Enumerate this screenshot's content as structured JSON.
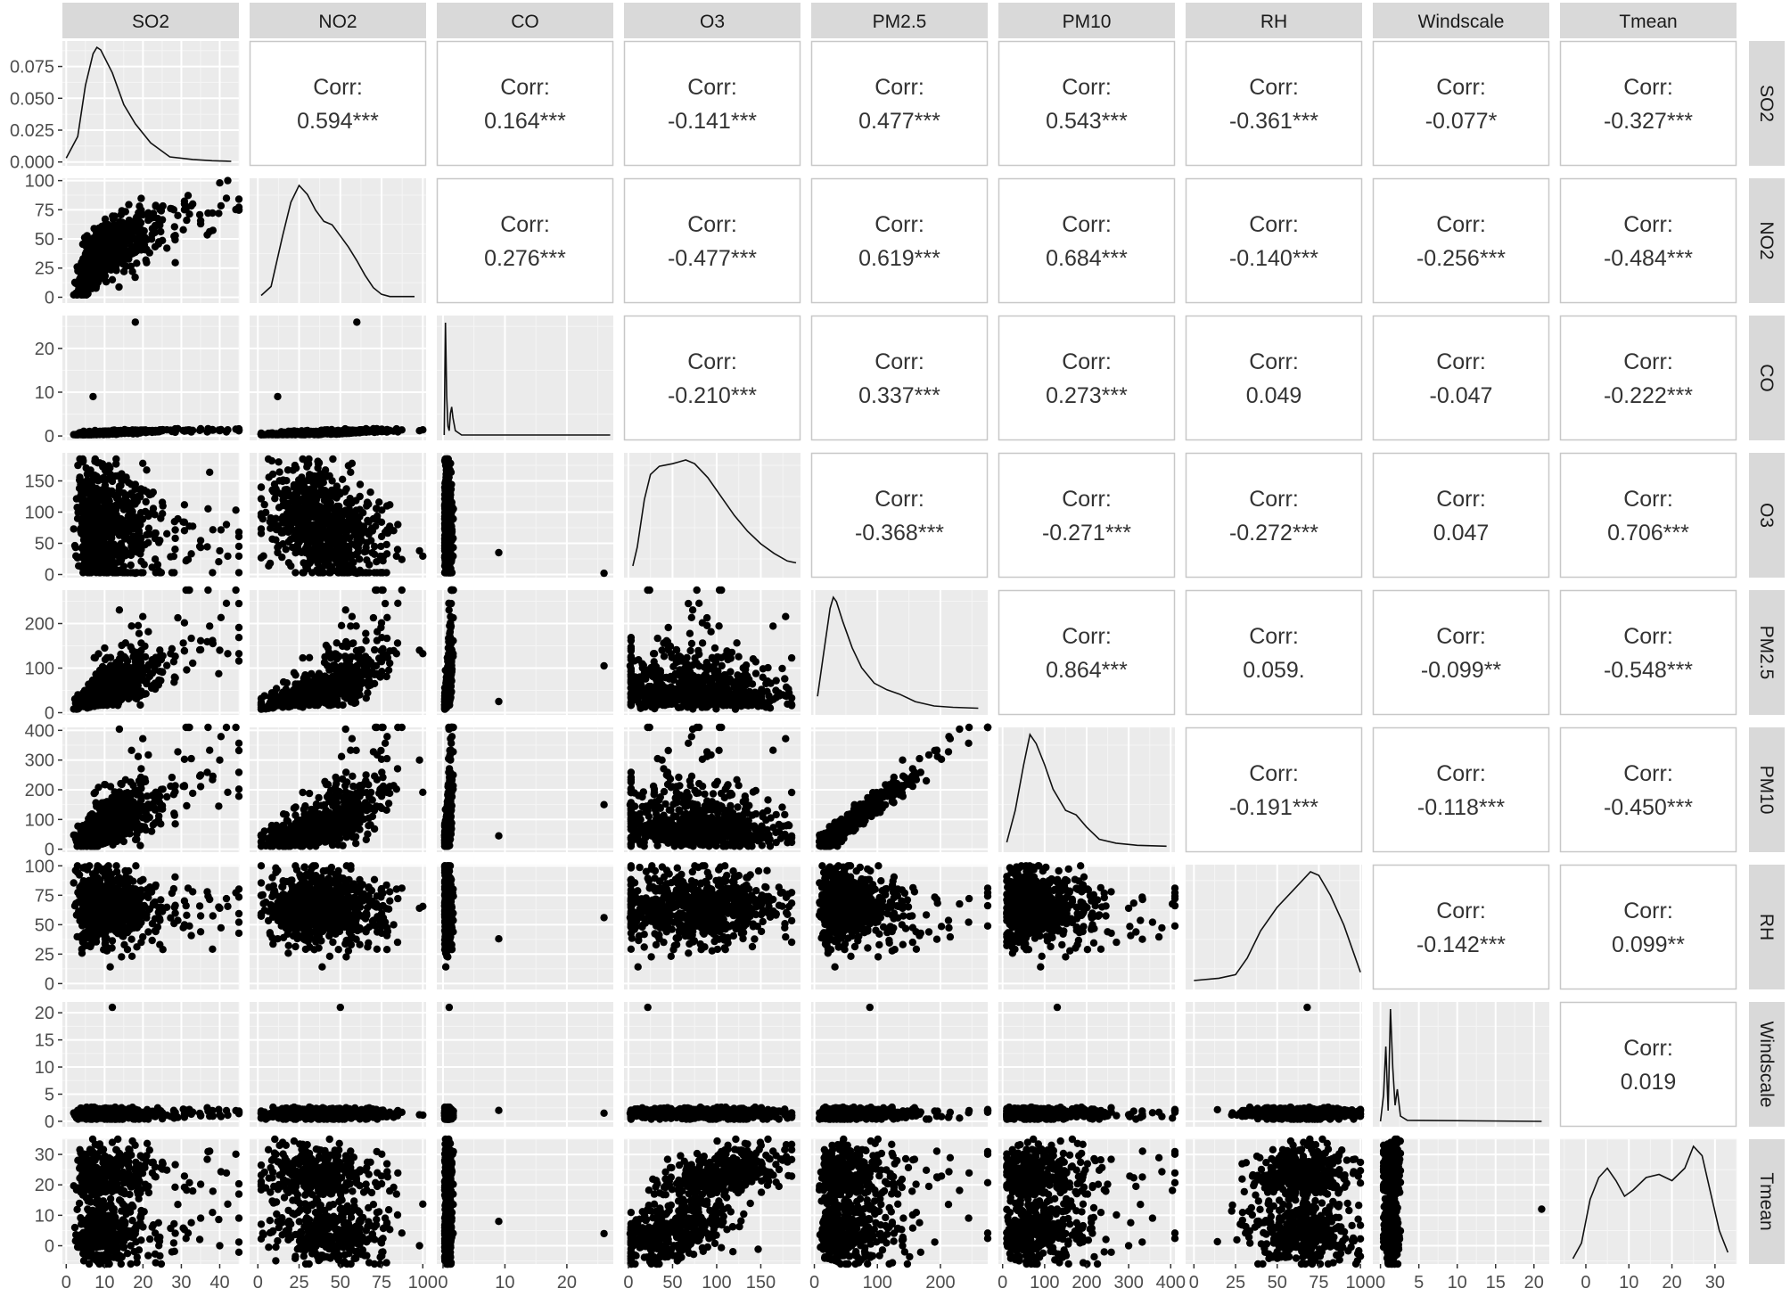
{
  "chart_data": {
    "type": "scatter-matrix",
    "variables": [
      "SO2",
      "NO2",
      "CO",
      "O3",
      "PM2.5",
      "PM10",
      "RH",
      "Windscale",
      "Tmean"
    ],
    "corr_label": "Corr:",
    "correlations": [
      {
        "row": "SO2",
        "col": "NO2",
        "value": 0.594,
        "text": "0.594***"
      },
      {
        "row": "SO2",
        "col": "CO",
        "value": 0.164,
        "text": "0.164***"
      },
      {
        "row": "SO2",
        "col": "O3",
        "value": -0.141,
        "text": "-0.141***"
      },
      {
        "row": "SO2",
        "col": "PM2.5",
        "value": 0.477,
        "text": "0.477***"
      },
      {
        "row": "SO2",
        "col": "PM10",
        "value": 0.543,
        "text": "0.543***"
      },
      {
        "row": "SO2",
        "col": "RH",
        "value": -0.361,
        "text": "-0.361***"
      },
      {
        "row": "SO2",
        "col": "Windscale",
        "value": -0.077,
        "text": "-0.077*"
      },
      {
        "row": "SO2",
        "col": "Tmean",
        "value": -0.327,
        "text": "-0.327***"
      },
      {
        "row": "NO2",
        "col": "CO",
        "value": 0.276,
        "text": "0.276***"
      },
      {
        "row": "NO2",
        "col": "O3",
        "value": -0.477,
        "text": "-0.477***"
      },
      {
        "row": "NO2",
        "col": "PM2.5",
        "value": 0.619,
        "text": "0.619***"
      },
      {
        "row": "NO2",
        "col": "PM10",
        "value": 0.684,
        "text": "0.684***"
      },
      {
        "row": "NO2",
        "col": "RH",
        "value": -0.14,
        "text": "-0.140***"
      },
      {
        "row": "NO2",
        "col": "Windscale",
        "value": -0.256,
        "text": "-0.256***"
      },
      {
        "row": "NO2",
        "col": "Tmean",
        "value": -0.484,
        "text": "-0.484***"
      },
      {
        "row": "CO",
        "col": "O3",
        "value": -0.21,
        "text": "-0.210***"
      },
      {
        "row": "CO",
        "col": "PM2.5",
        "value": 0.337,
        "text": "0.337***"
      },
      {
        "row": "CO",
        "col": "PM10",
        "value": 0.273,
        "text": "0.273***"
      },
      {
        "row": "CO",
        "col": "RH",
        "value": 0.049,
        "text": "0.049"
      },
      {
        "row": "CO",
        "col": "Windscale",
        "value": -0.047,
        "text": "-0.047"
      },
      {
        "row": "CO",
        "col": "Tmean",
        "value": -0.222,
        "text": "-0.222***"
      },
      {
        "row": "O3",
        "col": "PM2.5",
        "value": -0.368,
        "text": "-0.368***"
      },
      {
        "row": "O3",
        "col": "PM10",
        "value": -0.271,
        "text": "-0.271***"
      },
      {
        "row": "O3",
        "col": "RH",
        "value": -0.272,
        "text": "-0.272***"
      },
      {
        "row": "O3",
        "col": "Windscale",
        "value": 0.047,
        "text": "0.047"
      },
      {
        "row": "O3",
        "col": "Tmean",
        "value": 0.706,
        "text": "0.706***"
      },
      {
        "row": "PM2.5",
        "col": "PM10",
        "value": 0.864,
        "text": "0.864***"
      },
      {
        "row": "PM2.5",
        "col": "RH",
        "value": 0.059,
        "text": "0.059."
      },
      {
        "row": "PM2.5",
        "col": "Windscale",
        "value": -0.099,
        "text": "-0.099**"
      },
      {
        "row": "PM2.5",
        "col": "Tmean",
        "value": -0.548,
        "text": "-0.548***"
      },
      {
        "row": "PM10",
        "col": "RH",
        "value": -0.191,
        "text": "-0.191***"
      },
      {
        "row": "PM10",
        "col": "Windscale",
        "value": -0.118,
        "text": "-0.118***"
      },
      {
        "row": "PM10",
        "col": "Tmean",
        "value": -0.45,
        "text": "-0.450***"
      },
      {
        "row": "RH",
        "col": "Windscale",
        "value": -0.142,
        "text": "-0.142***"
      },
      {
        "row": "RH",
        "col": "Tmean",
        "value": 0.099,
        "text": "0.099**"
      },
      {
        "row": "Windscale",
        "col": "Tmean",
        "value": 0.019,
        "text": "0.019"
      }
    ],
    "x_axes": [
      {
        "var": "SO2",
        "range": [
          -1,
          45
        ],
        "ticks": [
          "0",
          "10",
          "20",
          "30",
          "40"
        ]
      },
      {
        "var": "NO2",
        "range": [
          -5,
          102
        ],
        "ticks": [
          "0",
          "25",
          "50",
          "75",
          "100"
        ]
      },
      {
        "var": "CO",
        "range": [
          -1,
          27.5
        ],
        "ticks": [
          "0",
          "10",
          "20"
        ]
      },
      {
        "var": "O3",
        "range": [
          -5,
          195
        ],
        "ticks": [
          "0",
          "50",
          "100",
          "150"
        ]
      },
      {
        "var": "PM2.5",
        "range": [
          -5,
          275
        ],
        "ticks": [
          "0",
          "100",
          "200"
        ]
      },
      {
        "var": "PM10",
        "range": [
          -10,
          410
        ],
        "ticks": [
          "0",
          "100",
          "200",
          "300",
          "400"
        ]
      },
      {
        "var": "RH",
        "range": [
          -5,
          101
        ],
        "ticks": [
          "0",
          "25",
          "50",
          "75",
          "100"
        ]
      },
      {
        "var": "Windscale",
        "range": [
          -1,
          22
        ],
        "ticks": [
          "0",
          "5",
          "10",
          "15",
          "20"
        ]
      },
      {
        "var": "Tmean",
        "range": [
          -6,
          35
        ],
        "ticks": [
          "0",
          "10",
          "20",
          "30"
        ]
      }
    ],
    "y_axes": [
      {
        "var": "SO2",
        "range": [
          -0.003,
          0.095
        ],
        "ticks": [
          "0.000",
          "0.025",
          "0.050",
          "0.075"
        ],
        "note": "density"
      },
      {
        "var": "NO2",
        "range": [
          -5,
          102
        ],
        "ticks": [
          "0",
          "25",
          "50",
          "75",
          "100"
        ]
      },
      {
        "var": "CO",
        "range": [
          -1,
          27.5
        ],
        "ticks": [
          "0",
          "10",
          "20"
        ]
      },
      {
        "var": "O3",
        "range": [
          -5,
          195
        ],
        "ticks": [
          "0",
          "50",
          "100",
          "150"
        ]
      },
      {
        "var": "PM2.5",
        "range": [
          -5,
          275
        ],
        "ticks": [
          "0",
          "100",
          "200"
        ]
      },
      {
        "var": "PM10",
        "range": [
          -10,
          410
        ],
        "ticks": [
          "0",
          "100",
          "200",
          "300",
          "400"
        ]
      },
      {
        "var": "RH",
        "range": [
          -5,
          101
        ],
        "ticks": [
          "0",
          "25",
          "50",
          "75",
          "100"
        ]
      },
      {
        "var": "Windscale",
        "range": [
          -1,
          22
        ],
        "ticks": [
          "0",
          "5",
          "10",
          "15",
          "20"
        ]
      },
      {
        "var": "Tmean",
        "range": [
          -6,
          35
        ],
        "ticks": [
          "0",
          "10",
          "20",
          "30"
        ]
      }
    ],
    "density_curves": {
      "SO2": [
        [
          0,
          0.003
        ],
        [
          3,
          0.02
        ],
        [
          5,
          0.06
        ],
        [
          7,
          0.085
        ],
        [
          8,
          0.09
        ],
        [
          9,
          0.088
        ],
        [
          12,
          0.07
        ],
        [
          15,
          0.045
        ],
        [
          18,
          0.03
        ],
        [
          22,
          0.015
        ],
        [
          27,
          0.004
        ],
        [
          33,
          0.002
        ],
        [
          38,
          0.001
        ],
        [
          43,
          0.0005
        ]
      ],
      "NO2": [
        [
          2,
          2
        ],
        [
          8,
          10
        ],
        [
          15,
          55
        ],
        [
          20,
          85
        ],
        [
          25,
          100
        ],
        [
          30,
          92
        ],
        [
          35,
          78
        ],
        [
          40,
          68
        ],
        [
          45,
          65
        ],
        [
          50,
          55
        ],
        [
          55,
          45
        ],
        [
          60,
          33
        ],
        [
          65,
          20
        ],
        [
          70,
          9
        ],
        [
          75,
          3
        ],
        [
          80,
          1
        ],
        [
          95,
          1
        ]
      ],
      "CO": [
        [
          0.2,
          0
        ],
        [
          0.4,
          26
        ],
        [
          0.6,
          9
        ],
        [
          0.8,
          2
        ],
        [
          1.0,
          1
        ],
        [
          1.2,
          5
        ],
        [
          1.4,
          6.5
        ],
        [
          1.6,
          4
        ],
        [
          2,
          1
        ],
        [
          3,
          0
        ],
        [
          27,
          0
        ]
      ],
      "O3": [
        [
          5,
          10
        ],
        [
          10,
          40
        ],
        [
          18,
          115
        ],
        [
          25,
          155
        ],
        [
          35,
          168
        ],
        [
          50,
          172
        ],
        [
          65,
          178
        ],
        [
          75,
          172
        ],
        [
          90,
          150
        ],
        [
          105,
          120
        ],
        [
          120,
          90
        ],
        [
          135,
          65
        ],
        [
          150,
          45
        ],
        [
          165,
          30
        ],
        [
          180,
          18
        ],
        [
          190,
          15
        ]
      ],
      "PM2.5": [
        [
          5,
          30
        ],
        [
          15,
          130
        ],
        [
          25,
          230
        ],
        [
          30,
          255
        ],
        [
          35,
          245
        ],
        [
          45,
          200
        ],
        [
          60,
          140
        ],
        [
          75,
          95
        ],
        [
          95,
          60
        ],
        [
          115,
          45
        ],
        [
          135,
          35
        ],
        [
          160,
          18
        ],
        [
          190,
          8
        ],
        [
          220,
          5
        ],
        [
          260,
          3
        ]
      ],
      "PM10": [
        [
          10,
          15
        ],
        [
          30,
          120
        ],
        [
          50,
          270
        ],
        [
          65,
          370
        ],
        [
          80,
          340
        ],
        [
          100,
          270
        ],
        [
          120,
          190
        ],
        [
          150,
          120
        ],
        [
          175,
          105
        ],
        [
          200,
          65
        ],
        [
          230,
          25
        ],
        [
          270,
          12
        ],
        [
          320,
          5
        ],
        [
          390,
          2
        ]
      ],
      "RH": [
        [
          0,
          3
        ],
        [
          15,
          5
        ],
        [
          25,
          8
        ],
        [
          32,
          22
        ],
        [
          40,
          45
        ],
        [
          50,
          65
        ],
        [
          60,
          80
        ],
        [
          70,
          95
        ],
        [
          75,
          92
        ],
        [
          82,
          75
        ],
        [
          90,
          50
        ],
        [
          100,
          10
        ]
      ],
      "Windscale": [
        [
          0,
          0
        ],
        [
          0.4,
          5
        ],
        [
          0.7,
          14
        ],
        [
          1.0,
          2
        ],
        [
          1.3,
          21
        ],
        [
          1.6,
          10
        ],
        [
          1.9,
          3
        ],
        [
          2.2,
          6
        ],
        [
          2.6,
          1
        ],
        [
          3.5,
          0.2
        ],
        [
          21,
          0
        ]
      ],
      "Tmean": [
        [
          -3,
          -4
        ],
        [
          -1,
          1
        ],
        [
          1,
          15
        ],
        [
          3,
          22
        ],
        [
          5,
          25
        ],
        [
          7,
          21
        ],
        [
          9,
          16
        ],
        [
          11,
          18
        ],
        [
          14,
          22
        ],
        [
          17,
          23
        ],
        [
          20,
          21
        ],
        [
          23,
          25
        ],
        [
          25,
          32
        ],
        [
          27,
          29
        ],
        [
          29,
          17
        ],
        [
          31,
          5
        ],
        [
          33,
          -2
        ]
      ]
    },
    "grid": true,
    "legend": "none"
  }
}
